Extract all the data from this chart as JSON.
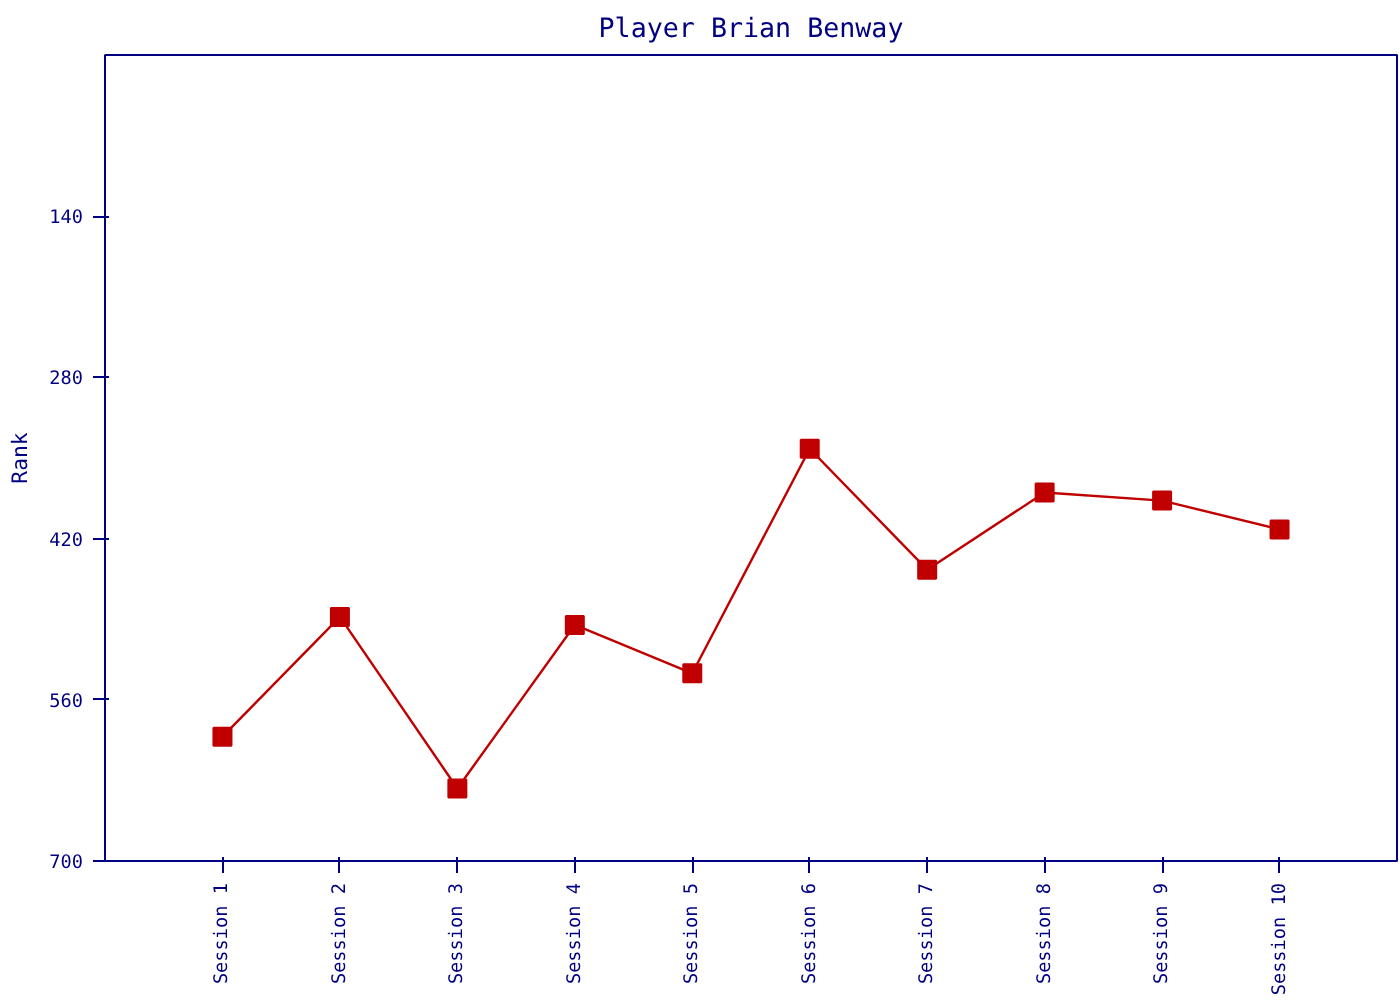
{
  "chart_data": {
    "type": "line",
    "title": "Player Brian Benway",
    "ylabel": "Rank",
    "categories": [
      "Session 1",
      "Session 2",
      "Session 3",
      "Session 4",
      "Session 5",
      "Session 6",
      "Session 7",
      "Session 8",
      "Session 9",
      "Session 10"
    ],
    "series": [
      {
        "color": "#c00000",
        "values": [
          592,
          488,
          637,
          495,
          537,
          342,
          447,
          380,
          387,
          412
        ]
      }
    ],
    "ylim": [
      700,
      0
    ],
    "yticks": [
      140,
      280,
      420,
      560,
      700
    ],
    "grid": false,
    "marker": "square",
    "line_style": "solid"
  }
}
